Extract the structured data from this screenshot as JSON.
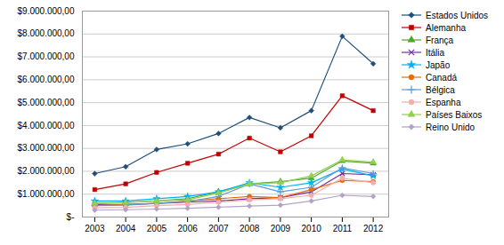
{
  "chart_data": {
    "type": "line",
    "x": [
      2003,
      2004,
      2005,
      2006,
      2007,
      2008,
      2009,
      2010,
      2011,
      2012
    ],
    "xlim": [
      2002.6,
      2012.5
    ],
    "xticks": [
      2003,
      2004,
      2005,
      2006,
      2007,
      2008,
      2009,
      2010,
      2011,
      2012
    ],
    "ylim": [
      0,
      9000000
    ],
    "yticks": [
      {
        "value": 0,
        "label": "$-"
      },
      {
        "value": 1000000,
        "label": "$1.000.000,00"
      },
      {
        "value": 2000000,
        "label": "$2.000.000,00"
      },
      {
        "value": 3000000,
        "label": "$3.000.000,00"
      },
      {
        "value": 4000000,
        "label": "$4.000.000,00"
      },
      {
        "value": 5000000,
        "label": "$5.000.000,00"
      },
      {
        "value": 6000000,
        "label": "$6.000.000,00"
      },
      {
        "value": 7000000,
        "label": "$7.000.000,00"
      },
      {
        "value": 8000000,
        "label": "$8.000.000,00"
      },
      {
        "value": 9000000,
        "label": "$9.000.000,00"
      }
    ],
    "grid": true,
    "legend": "right",
    "series": [
      {
        "name": "Estados Unidos",
        "color": "#1F4E79",
        "marker": "diamond",
        "values": [
          1900000,
          2200000,
          2950000,
          3200000,
          3650000,
          4350000,
          3900000,
          4650000,
          7900000,
          6700000
        ]
      },
      {
        "name": "Alemanha",
        "color": "#C00000",
        "marker": "square",
        "values": [
          1200000,
          1450000,
          1950000,
          2350000,
          2750000,
          3450000,
          2850000,
          3550000,
          5300000,
          4650000
        ]
      },
      {
        "name": "França",
        "color": "#4EA72A",
        "marker": "triangle",
        "values": [
          600000,
          650000,
          700000,
          800000,
          1100000,
          1450000,
          1550000,
          1700000,
          2450000,
          2350000
        ]
      },
      {
        "name": "Itália",
        "color": "#7030A0",
        "marker": "x",
        "values": [
          550000,
          550000,
          600000,
          650000,
          700000,
          800000,
          850000,
          1100000,
          1900000,
          1850000
        ]
      },
      {
        "name": "Japão",
        "color": "#00B0F0",
        "marker": "star",
        "values": [
          700000,
          700000,
          800000,
          900000,
          1100000,
          1500000,
          1300000,
          1500000,
          2100000,
          1800000
        ]
      },
      {
        "name": "Canadá",
        "color": "#E36C09",
        "marker": "circle",
        "values": [
          500000,
          550000,
          600000,
          700000,
          800000,
          900000,
          850000,
          1200000,
          1600000,
          1550000
        ]
      },
      {
        "name": "Bélgica",
        "color": "#5B9BD5",
        "marker": "plus",
        "values": [
          500000,
          520000,
          600000,
          680000,
          900000,
          1450000,
          1100000,
          1300000,
          2150000,
          1900000
        ]
      },
      {
        "name": "Espanha",
        "color": "#F4ACAC",
        "marker": "circle",
        "values": [
          400000,
          420000,
          500000,
          550000,
          650000,
          750000,
          800000,
          950000,
          1700000,
          1500000
        ]
      },
      {
        "name": "Países Baixos",
        "color": "#92D050",
        "marker": "triangle",
        "values": [
          600000,
          630000,
          700000,
          750000,
          1050000,
          1450000,
          1500000,
          1800000,
          2500000,
          2400000
        ]
      },
      {
        "name": "Reino Unido",
        "color": "#B3A2C7",
        "marker": "diamond",
        "values": [
          300000,
          320000,
          350000,
          380000,
          430000,
          480000,
          520000,
          700000,
          950000,
          900000
        ]
      }
    ]
  }
}
